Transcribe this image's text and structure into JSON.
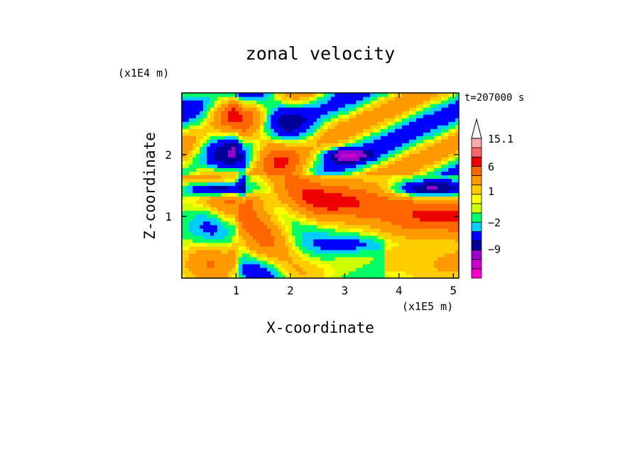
{
  "chart_data": {
    "type": "heatmap",
    "title": "zonal velocity",
    "xlabel": "X-coordinate",
    "ylabel": "Z-coordinate",
    "x_unit": "(x1E5 m)",
    "y_unit": "(x1E4 m)",
    "time_label": "t=207000 s",
    "xlim": [
      0.0,
      5.1
    ],
    "ylim": [
      0.0,
      3.0
    ],
    "xticks": [
      1,
      2,
      3,
      4,
      5
    ],
    "yticks": [
      1,
      2
    ],
    "colorbar": {
      "levels": [
        -15,
        -12,
        -9,
        -6,
        -4,
        -2,
        -1,
        0,
        0.5,
        1,
        2,
        4,
        6,
        9,
        12,
        15.1
      ],
      "colors": [
        "#ff00cc",
        "#cc00cc",
        "#9900cc",
        "#000099",
        "#0000ff",
        "#00ccff",
        "#00ff66",
        "#ccff00",
        "#ffff00",
        "#ffcc00",
        "#ff9900",
        "#ff6600",
        "#ee0000",
        "#ff6666",
        "#ffaaaa"
      ],
      "tick_labels": [
        "15.1",
        "6",
        "1",
        "-2",
        "-9"
      ],
      "extend": "max"
    },
    "grid": false
  }
}
